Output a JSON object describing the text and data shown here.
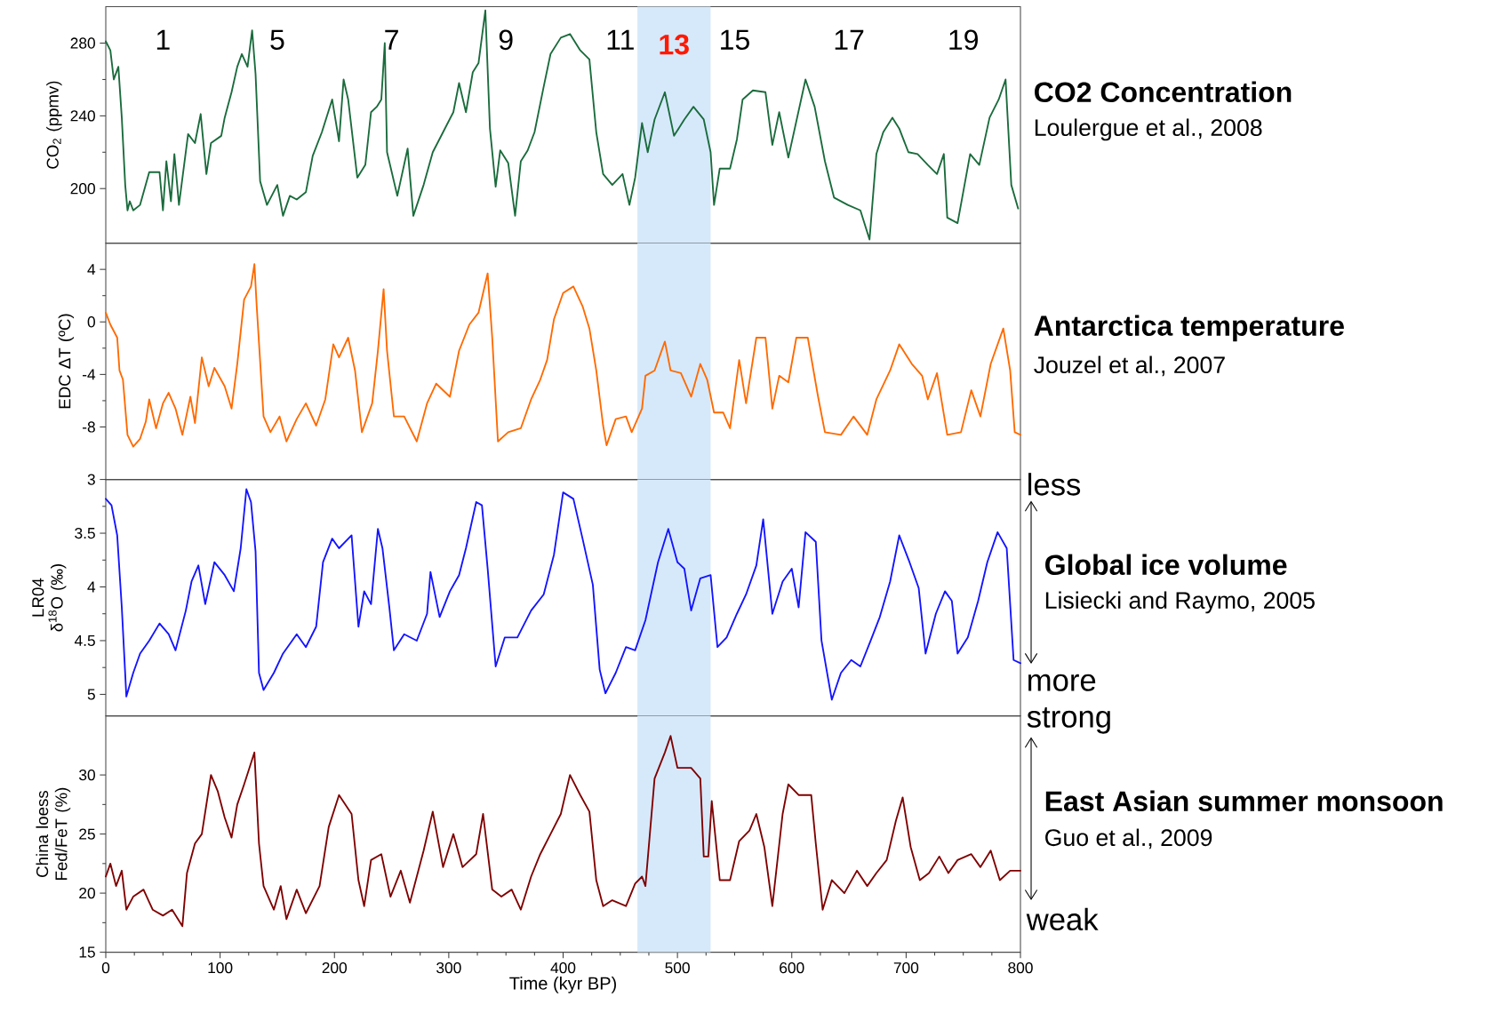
{
  "chart_data": [
    {
      "type": "line",
      "ylabel": "CO$_{2}$ (ppmv)",
      "color": "#1a6b3c",
      "xlim": [
        0,
        800
      ],
      "ylim": [
        170,
        300
      ],
      "yticks": [
        200,
        240,
        280
      ],
      "tick_labels": "y",
      "bands": [
        {
          "axis": "x",
          "from": 465,
          "to": 529,
          "color": "#d6e9fb",
          "label": "13"
        }
      ],
      "annotations": [
        "1",
        "5",
        "7",
        "9",
        "11",
        "15",
        "17",
        "19",
        "CO2 Concentration",
        "Loulergue et al., 2008"
      ],
      "x": [
        0,
        4,
        7,
        11,
        14,
        17,
        19,
        21,
        24,
        30,
        38,
        47,
        50,
        53,
        57,
        60,
        64,
        72,
        78,
        83,
        88,
        92,
        101,
        104,
        110,
        115,
        119,
        124,
        128,
        131,
        135,
        141,
        150,
        155,
        161,
        167,
        175,
        181,
        189,
        198,
        204,
        208,
        212,
        220,
        227,
        232,
        237,
        241,
        244,
        246,
        255,
        264,
        269,
        278,
        286,
        295,
        304,
        309,
        315,
        321,
        326,
        332,
        336,
        341,
        345,
        352,
        358,
        363,
        369,
        375,
        383,
        389,
        398,
        406,
        415,
        423,
        429,
        435,
        443,
        452,
        458,
        463,
        469,
        474,
        480,
        489,
        497,
        506,
        514,
        523,
        529,
        532,
        537,
        546,
        552,
        557,
        566,
        577,
        583,
        589,
        597,
        612,
        620,
        629,
        637,
        649,
        660,
        668,
        674,
        680,
        688,
        694,
        702,
        710,
        719,
        727,
        733,
        736,
        745,
        756,
        764,
        773,
        781,
        787,
        792,
        798
      ],
      "values": [
        281,
        276,
        260,
        267,
        239,
        202,
        188,
        193,
        188,
        191,
        209,
        209,
        188,
        215,
        193,
        219,
        191,
        230,
        225,
        241,
        208,
        225,
        229,
        239,
        253,
        267,
        274,
        267,
        287,
        263,
        204,
        191,
        202,
        185,
        196,
        194,
        198,
        218,
        231,
        249,
        226,
        260,
        249,
        206,
        213,
        242,
        245,
        249,
        280,
        220,
        196,
        222,
        185,
        202,
        220,
        231,
        242,
        258,
        242,
        264,
        269,
        298,
        233,
        201,
        221,
        214,
        185,
        215,
        221,
        231,
        256,
        274,
        283,
        285,
        276,
        271,
        231,
        208,
        202,
        208,
        191,
        206,
        236,
        220,
        238,
        253,
        229,
        238,
        245,
        238,
        220,
        191,
        211,
        211,
        227,
        249,
        254,
        253,
        224,
        242,
        217,
        260,
        245,
        215,
        195,
        191,
        188,
        172,
        219,
        231,
        239,
        233,
        220,
        219,
        213,
        208,
        219,
        184,
        181,
        219,
        213,
        239,
        249,
        260,
        202,
        189
      ]
    },
    {
      "type": "line",
      "ylabel": "EDC  ΔT (ºC)",
      "color": "#ff6a00",
      "xlim": [
        0,
        800
      ],
      "ylim": [
        -12,
        6
      ],
      "yticks": [
        -8,
        -4,
        0,
        4
      ],
      "tick_labels": "y",
      "bands": [
        {
          "axis": "x",
          "from": 465,
          "to": 529,
          "color": "#d6e9fb"
        }
      ],
      "annotations": [
        "Antarctica temperature",
        "Jouzel et al., 2007"
      ],
      "x": [
        0,
        4,
        10,
        12,
        15,
        19,
        24,
        30,
        35,
        38,
        44,
        50,
        55,
        61,
        67,
        74,
        78,
        84,
        90,
        95,
        104,
        110,
        115,
        121,
        127,
        130,
        132,
        138,
        144,
        152,
        158,
        167,
        175,
        184,
        192,
        199,
        204,
        212,
        218,
        224,
        233,
        238,
        243,
        246,
        252,
        261,
        272,
        281,
        289,
        301,
        309,
        318,
        326,
        334,
        338,
        343,
        352,
        363,
        372,
        380,
        386,
        392,
        400,
        409,
        417,
        423,
        429,
        435,
        438,
        446,
        455,
        460,
        469,
        472,
        480,
        489,
        494,
        503,
        512,
        520,
        526,
        532,
        540,
        546,
        554,
        560,
        569,
        577,
        583,
        589,
        597,
        604,
        614,
        623,
        629,
        643,
        654,
        666,
        674,
        686,
        694,
        705,
        714,
        719,
        727,
        736,
        748,
        757,
        765,
        774,
        785,
        791,
        795,
        800
      ],
      "values": [
        0.7,
        -0.2,
        -1.2,
        -3.7,
        -4.4,
        -8.6,
        -9.5,
        -8.9,
        -7.6,
        -5.9,
        -8.1,
        -6.2,
        -5.4,
        -6.6,
        -8.6,
        -5.7,
        -7.7,
        -2.7,
        -4.9,
        -3.5,
        -4.9,
        -6.6,
        -3.2,
        1.7,
        2.7,
        4.4,
        1.2,
        -7.2,
        -8.4,
        -7.2,
        -9.1,
        -7.4,
        -6.2,
        -7.9,
        -5.9,
        -1.7,
        -2.7,
        -1.2,
        -3.7,
        -8.4,
        -6.2,
        -2.2,
        2.5,
        -2.2,
        -7.2,
        -7.2,
        -9.1,
        -6.2,
        -4.7,
        -5.7,
        -2.2,
        -0.2,
        0.7,
        3.7,
        -1.2,
        -9.1,
        -8.4,
        -8.1,
        -5.9,
        -4.4,
        -2.9,
        0.2,
        2.2,
        2.7,
        1.2,
        -0.5,
        -3.7,
        -7.9,
        -9.4,
        -7.4,
        -7.2,
        -8.4,
        -6.6,
        -4.1,
        -3.7,
        -1.5,
        -3.7,
        -3.9,
        -5.7,
        -3.2,
        -4.4,
        -6.9,
        -6.9,
        -8.1,
        -2.9,
        -6.2,
        -1.2,
        -1.2,
        -6.6,
        -4.1,
        -4.6,
        -1.2,
        -1.2,
        -5.7,
        -8.4,
        -8.6,
        -7.2,
        -8.6,
        -5.9,
        -3.7,
        -1.7,
        -3.2,
        -4.1,
        -5.9,
        -3.9,
        -8.6,
        -8.4,
        -5.2,
        -7.2,
        -3.2,
        -0.5,
        -3.7,
        -8.4,
        -8.6
      ]
    },
    {
      "type": "line",
      "ylabel": "LR04  δ$^{18}$O (‰)",
      "color": "#1414ff",
      "xlim": [
        0,
        800
      ],
      "ylim": [
        5.2,
        3
      ],
      "yticks": [
        3,
        3.5,
        4,
        4.5,
        5
      ],
      "tick_labels": "y",
      "bands": [
        {
          "axis": "x",
          "from": 465,
          "to": 529,
          "color": "#d6e9fb"
        }
      ],
      "annotations": [
        "less",
        "more",
        "Global ice volume",
        "Lisiecki and Raymo, 2005"
      ],
      "x": [
        0,
        5,
        10,
        14,
        18,
        24,
        30,
        38,
        47,
        55,
        61,
        70,
        75,
        81,
        87,
        95,
        104,
        112,
        118,
        123,
        127,
        131,
        134,
        138,
        147,
        155,
        167,
        175,
        184,
        190,
        198,
        204,
        215,
        221,
        226,
        232,
        238,
        242,
        248,
        252,
        261,
        272,
        281,
        284,
        292,
        301,
        309,
        315,
        324,
        329,
        334,
        341,
        349,
        360,
        372,
        383,
        392,
        400,
        409,
        417,
        426,
        432,
        437,
        446,
        455,
        463,
        472,
        483,
        492,
        500,
        506,
        512,
        520,
        529,
        535,
        543,
        552,
        560,
        569,
        575,
        583,
        592,
        600,
        606,
        612,
        621,
        626,
        635,
        643,
        652,
        660,
        669,
        677,
        686,
        694,
        703,
        711,
        717,
        726,
        734,
        740,
        745,
        754,
        763,
        771,
        780,
        788,
        794,
        800
      ],
      "values": [
        3.18,
        3.24,
        3.52,
        4.19,
        5.02,
        4.8,
        4.62,
        4.5,
        4.34,
        4.44,
        4.59,
        4.22,
        3.95,
        3.8,
        4.16,
        3.77,
        3.89,
        4.04,
        3.64,
        3.09,
        3.21,
        3.67,
        4.8,
        4.96,
        4.8,
        4.62,
        4.44,
        4.56,
        4.37,
        3.77,
        3.55,
        3.64,
        3.52,
        4.37,
        4.04,
        4.16,
        3.46,
        3.64,
        4.19,
        4.59,
        4.44,
        4.5,
        4.25,
        3.86,
        4.28,
        4.04,
        3.89,
        3.64,
        3.21,
        3.24,
        3.83,
        4.74,
        4.47,
        4.47,
        4.22,
        4.07,
        3.7,
        3.12,
        3.18,
        3.55,
        3.98,
        4.77,
        4.99,
        4.8,
        4.56,
        4.59,
        4.31,
        3.77,
        3.46,
        3.77,
        3.83,
        4.22,
        3.92,
        3.89,
        4.56,
        4.47,
        4.25,
        4.07,
        3.8,
        3.37,
        4.25,
        3.95,
        3.83,
        4.19,
        3.49,
        3.58,
        4.5,
        5.05,
        4.8,
        4.68,
        4.74,
        4.5,
        4.28,
        3.95,
        3.52,
        3.77,
        4.01,
        4.62,
        4.25,
        4.04,
        4.13,
        4.62,
        4.47,
        4.13,
        3.77,
        3.49,
        3.64,
        4.68,
        4.71
      ]
    },
    {
      "type": "line",
      "ylabel": "China loess Fed/FeT (%)",
      "xlabel": "Time (kyr BP)",
      "color": "#7f0000",
      "xlim": [
        0,
        800
      ],
      "xticks": [
        0,
        100,
        200,
        300,
        400,
        500,
        600,
        700,
        800
      ],
      "ylim": [
        15,
        35
      ],
      "yticks": [
        15,
        20,
        25,
        30
      ],
      "bands": [
        {
          "axis": "x",
          "from": 465,
          "to": 529,
          "color": "#d6e9fb"
        }
      ],
      "annotations": [
        "strong",
        "weak",
        "East Asian summer monsoon",
        "Guo et al., 2009"
      ],
      "x": [
        0,
        4,
        9,
        14,
        18,
        24,
        33,
        41,
        50,
        58,
        67,
        71,
        78,
        84,
        92,
        98,
        104,
        110,
        115,
        121,
        130,
        134,
        138,
        147,
        153,
        158,
        167,
        175,
        187,
        195,
        204,
        215,
        221,
        226,
        232,
        241,
        249,
        258,
        266,
        278,
        286,
        295,
        304,
        312,
        324,
        330,
        338,
        346,
        355,
        363,
        372,
        380,
        389,
        398,
        406,
        415,
        423,
        429,
        435,
        443,
        455,
        463,
        469,
        472,
        480,
        489,
        494,
        500,
        512,
        520,
        523,
        527,
        530,
        537,
        546,
        554,
        563,
        569,
        576,
        583,
        592,
        597,
        606,
        617,
        621,
        627,
        635,
        646,
        657,
        666,
        674,
        683,
        691,
        697,
        704,
        712,
        720,
        729,
        737,
        745,
        757,
        765,
        774,
        782,
        791,
        800
      ],
      "values": [
        21.4,
        22.5,
        20.6,
        21.9,
        18.6,
        19.7,
        20.3,
        18.6,
        18.1,
        18.6,
        17.2,
        21.7,
        24.2,
        25.0,
        30.0,
        28.6,
        26.4,
        24.7,
        27.5,
        29.2,
        31.9,
        24.2,
        20.6,
        18.6,
        20.6,
        17.8,
        20.3,
        18.3,
        20.6,
        25.6,
        28.3,
        26.7,
        21.1,
        18.9,
        22.8,
        23.3,
        19.7,
        21.9,
        19.2,
        23.6,
        26.9,
        22.2,
        25.0,
        22.2,
        23.3,
        26.7,
        20.3,
        19.7,
        20.3,
        18.6,
        21.4,
        23.3,
        25.0,
        26.7,
        30.0,
        28.3,
        26.9,
        21.1,
        18.9,
        19.4,
        18.9,
        20.8,
        21.4,
        20.6,
        29.7,
        31.9,
        33.3,
        30.6,
        30.6,
        29.7,
        23.1,
        23.1,
        27.8,
        21.1,
        21.1,
        24.4,
        25.3,
        26.7,
        23.9,
        18.9,
        26.7,
        29.2,
        28.3,
        28.3,
        24.2,
        18.6,
        21.1,
        20.0,
        21.9,
        20.6,
        21.7,
        22.8,
        26.1,
        28.1,
        23.9,
        21.1,
        21.7,
        23.1,
        21.7,
        22.8,
        23.3,
        22.2,
        23.6,
        21.1,
        21.9,
        21.9
      ]
    }
  ]
}
